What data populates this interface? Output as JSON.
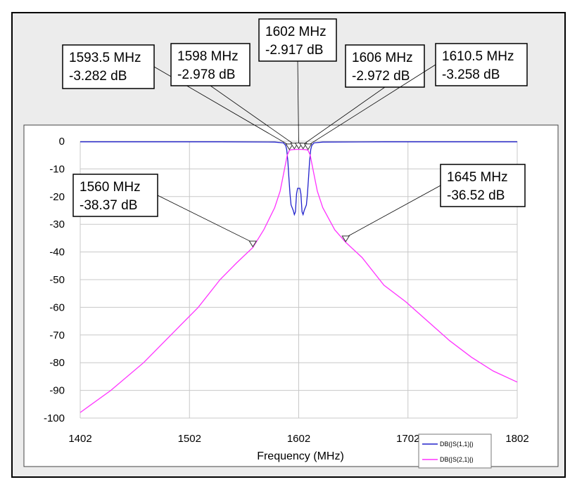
{
  "chart_data": {
    "type": "line",
    "title": "",
    "xlabel": "Frequency (MHz)",
    "ylabel": "",
    "xlim": [
      1402,
      1802
    ],
    "ylim": [
      -100,
      0
    ],
    "x_ticks": [
      "1402",
      "1502",
      "1602",
      "1702",
      "1802"
    ],
    "y_ticks": [
      "0",
      "-10",
      "-20",
      "-30",
      "-40",
      "-50",
      "-60",
      "-70",
      "-80",
      "-90",
      "-100"
    ],
    "grid": true,
    "legend_position": "bottom-right",
    "series": [
      {
        "name": "DB(|S(1,1)|)",
        "color": "#2222cc",
        "points": [
          [
            1402,
            -0.2
          ],
          [
            1530,
            -0.2
          ],
          [
            1580,
            -0.3
          ],
          [
            1588,
            -0.6
          ],
          [
            1590,
            -1.5
          ],
          [
            1591,
            -3
          ],
          [
            1592,
            -7
          ],
          [
            1593,
            -13
          ],
          [
            1594,
            -19
          ],
          [
            1595,
            -23
          ],
          [
            1596,
            -24
          ],
          [
            1597,
            -25
          ],
          [
            1598,
            -26.5
          ],
          [
            1599,
            -25.5
          ],
          [
            1600,
            -19
          ],
          [
            1601,
            -17
          ],
          [
            1602,
            -17
          ],
          [
            1603,
            -17
          ],
          [
            1604,
            -19
          ],
          [
            1605,
            -25.5
          ],
          [
            1606,
            -26.5
          ],
          [
            1607,
            -25
          ],
          [
            1608,
            -24
          ],
          [
            1609,
            -23
          ],
          [
            1610,
            -19
          ],
          [
            1611,
            -13
          ],
          [
            1612,
            -7
          ],
          [
            1613,
            -3
          ],
          [
            1614,
            -1.5
          ],
          [
            1616,
            -0.6
          ],
          [
            1624,
            -0.3
          ],
          [
            1680,
            -0.2
          ],
          [
            1802,
            -0.2
          ]
        ]
      },
      {
        "name": "DB(|S(2,1)|)",
        "color": "#ff33ff",
        "points": [
          [
            1402,
            -98
          ],
          [
            1430,
            -90
          ],
          [
            1460,
            -80
          ],
          [
            1490,
            -68
          ],
          [
            1510,
            -60
          ],
          [
            1530,
            -50
          ],
          [
            1545,
            -44
          ],
          [
            1560,
            -38.37
          ],
          [
            1570,
            -32
          ],
          [
            1580,
            -24
          ],
          [
            1585,
            -18
          ],
          [
            1588,
            -12
          ],
          [
            1590,
            -8
          ],
          [
            1591.5,
            -5
          ],
          [
            1593.5,
            -3.282
          ],
          [
            1595,
            -3.1
          ],
          [
            1598,
            -2.978
          ],
          [
            1602,
            -2.917
          ],
          [
            1606,
            -2.972
          ],
          [
            1609,
            -3.1
          ],
          [
            1610.5,
            -3.258
          ],
          [
            1612.5,
            -5
          ],
          [
            1614,
            -8
          ],
          [
            1616,
            -12
          ],
          [
            1619,
            -18
          ],
          [
            1624,
            -24
          ],
          [
            1635,
            -32
          ],
          [
            1645,
            -36.52
          ],
          [
            1660,
            -42
          ],
          [
            1680,
            -52
          ],
          [
            1700,
            -58
          ],
          [
            1720,
            -65
          ],
          [
            1740,
            -72
          ],
          [
            1760,
            -78
          ],
          [
            1780,
            -83
          ],
          [
            1802,
            -87
          ]
        ]
      }
    ],
    "markers": [
      {
        "label_freq": "1593.5 MHz",
        "label_db": "-3.282 dB",
        "x": 1593.5,
        "y": -3.282
      },
      {
        "label_freq": "1598 MHz",
        "label_db": "-2.978 dB",
        "x": 1598,
        "y": -2.978
      },
      {
        "label_freq": "1602 MHz",
        "label_db": "-2.917 dB",
        "x": 1602,
        "y": -2.917
      },
      {
        "label_freq": "1606 MHz",
        "label_db": "-2.972 dB",
        "x": 1606,
        "y": -2.972
      },
      {
        "label_freq": "1610.5 MHz",
        "label_db": "-3.258 dB",
        "x": 1610.5,
        "y": -3.258
      },
      {
        "label_freq": "1560 MHz",
        "label_db": "-38.37 dB",
        "x": 1560,
        "y": -38.37
      },
      {
        "label_freq": "1645 MHz",
        "label_db": "-36.52 dB",
        "x": 1645,
        "y": -36.52
      }
    ]
  }
}
